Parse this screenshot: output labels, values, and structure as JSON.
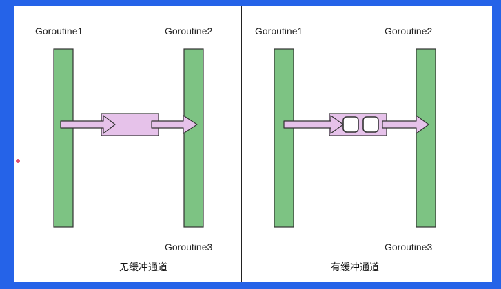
{
  "colors": {
    "background": "#2563e8",
    "canvas": "#ffffff",
    "goroutine_bar": "#7dc383",
    "channel": "#e6c2ea",
    "outline": "#333333",
    "divider": "#222222",
    "cursor_dot": "#e05070"
  },
  "left": {
    "g1_label": "Goroutine1",
    "g2_label": "Goroutine2",
    "g3_label": "Goroutine3",
    "caption": "无缓冲通道"
  },
  "right": {
    "g1_label": "Goroutine1",
    "g2_label": "Goroutine2",
    "g3_label": "Goroutine3",
    "caption": "有缓冲通道",
    "buffer_slots": 2
  }
}
